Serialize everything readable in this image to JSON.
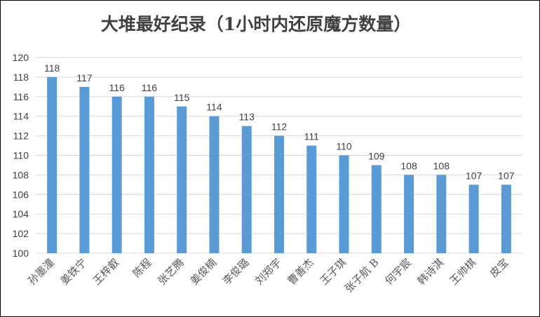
{
  "chart_data": {
    "type": "bar",
    "title": "大堆最好纪录（1小时内还原魔方数量）",
    "xlabel": "",
    "ylabel": "",
    "categories": [
      "孙墨潼",
      "姜铁宁",
      "王梓叡",
      "陈程",
      "张艺腾",
      "姜俊楠",
      "李俊璐",
      "刘郑宇",
      "曹善杰",
      "王子琪",
      "张子航 B",
      "何宇宸",
      "韩诗淇",
      "王帅棋",
      "皮宝"
    ],
    "series": [
      {
        "values": [
          118,
          117,
          116,
          116,
          115,
          114,
          113,
          112,
          111,
          110,
          109,
          108,
          108,
          107,
          107
        ]
      }
    ],
    "ylim": [
      100,
      120
    ],
    "ytick_step": 2,
    "grid": true,
    "legend": "none",
    "data_labels": true,
    "bar_color": "#5b9bd5"
  }
}
